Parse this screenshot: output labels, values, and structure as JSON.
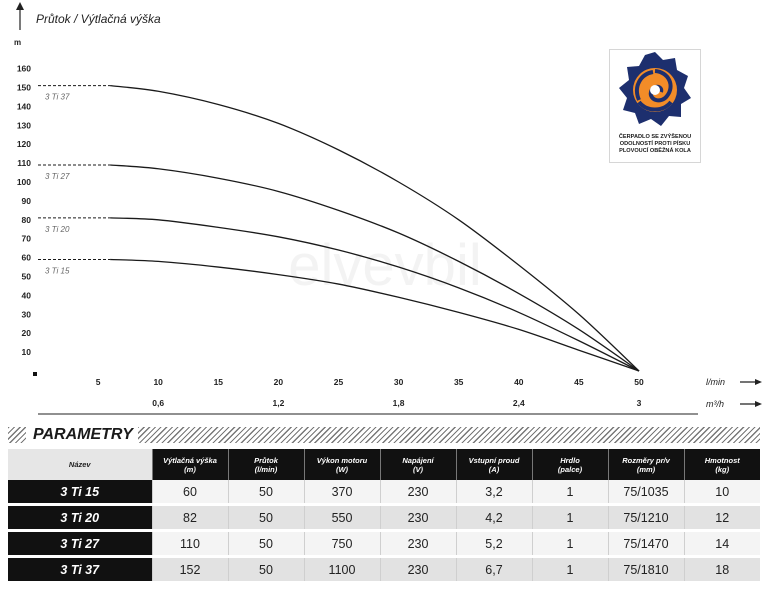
{
  "chart_data": {
    "type": "line",
    "title": "Průtok / Výtlačná výška",
    "y_unit": "m",
    "x_unit": "l/min",
    "x2_unit": "m³/h",
    "xlim": [
      0,
      55
    ],
    "ylim": [
      0,
      165
    ],
    "y_ticks": [
      10,
      20,
      30,
      40,
      50,
      60,
      70,
      80,
      90,
      100,
      110,
      120,
      130,
      140,
      150,
      160
    ],
    "x_ticks": [
      5,
      10,
      15,
      20,
      25,
      30,
      35,
      40,
      45,
      50
    ],
    "x2_ticks": [
      {
        "value": 10,
        "label": "0,6"
      },
      {
        "value": 20,
        "label": "1,2"
      },
      {
        "value": 30,
        "label": "1,8"
      },
      {
        "value": 40,
        "label": "2,4"
      },
      {
        "value": 50,
        "label": "3"
      }
    ],
    "grid": false,
    "series": [
      {
        "name": "3 Ti 37",
        "dashed_x": [
          0,
          6
        ],
        "x": [
          6,
          10,
          15,
          20,
          25,
          30,
          35,
          40,
          45,
          50
        ],
        "y": [
          151,
          148,
          141,
          131,
          117,
          100,
          80,
          56,
          30,
          0
        ]
      },
      {
        "name": "3 Ti 27",
        "dashed_x": [
          0,
          6
        ],
        "x": [
          6,
          10,
          15,
          20,
          25,
          30,
          35,
          40,
          45,
          50
        ],
        "y": [
          109,
          107,
          102,
          95,
          85,
          73,
          58,
          41,
          22,
          0
        ]
      },
      {
        "name": "3 Ti 20",
        "dashed_x": [
          0,
          6
        ],
        "x": [
          6,
          10,
          15,
          20,
          25,
          30,
          35,
          40,
          45,
          50
        ],
        "y": [
          81,
          80,
          76,
          71,
          64,
          55,
          44,
          31,
          16,
          0
        ]
      },
      {
        "name": "3 Ti 15",
        "dashed_x": [
          0,
          6
        ],
        "x": [
          6,
          10,
          15,
          20,
          25,
          30,
          35,
          40,
          45,
          50
        ],
        "y": [
          59,
          58,
          55,
          51,
          46,
          39,
          31,
          22,
          11,
          0
        ]
      }
    ]
  },
  "logo": {
    "lines": [
      "ČERPADLO SE ZVÝŠENOU",
      "ODOLNOSTÍ PROTI PÍSKU",
      "PLOVOUCÍ OBĚŽNÁ KOLA"
    ],
    "colors": {
      "blue": "#1d2f6e",
      "orange": "#f28c28"
    }
  },
  "watermark": "elvevbil",
  "params": {
    "title": "PARAMETRY",
    "headers": [
      {
        "l1": "Název",
        "l2": ""
      },
      {
        "l1": "Výtlačná výška",
        "l2": "(m)"
      },
      {
        "l1": "Průtok",
        "l2": "(l/min)"
      },
      {
        "l1": "Výkon motoru",
        "l2": "(W)"
      },
      {
        "l1": "Napájení",
        "l2": "(V)"
      },
      {
        "l1": "Vstupní proud",
        "l2": "(A)"
      },
      {
        "l1": "Hrdlo",
        "l2": "(palce)"
      },
      {
        "l1": "Rozměry pr/v",
        "l2": "(mm)"
      },
      {
        "l1": "Hmotnost",
        "l2": "(kg)"
      }
    ],
    "rows": [
      [
        "3 Ti 15",
        "60",
        "50",
        "370",
        "230",
        "3,2",
        "1",
        "75/1035",
        "10"
      ],
      [
        "3 Ti 20",
        "82",
        "50",
        "550",
        "230",
        "4,2",
        "1",
        "75/1210",
        "12"
      ],
      [
        "3 Ti 27",
        "110",
        "50",
        "750",
        "230",
        "5,2",
        "1",
        "75/1470",
        "14"
      ],
      [
        "3 Ti 37",
        "152",
        "50",
        "1100",
        "230",
        "6,7",
        "1",
        "75/1810",
        "18"
      ]
    ]
  }
}
